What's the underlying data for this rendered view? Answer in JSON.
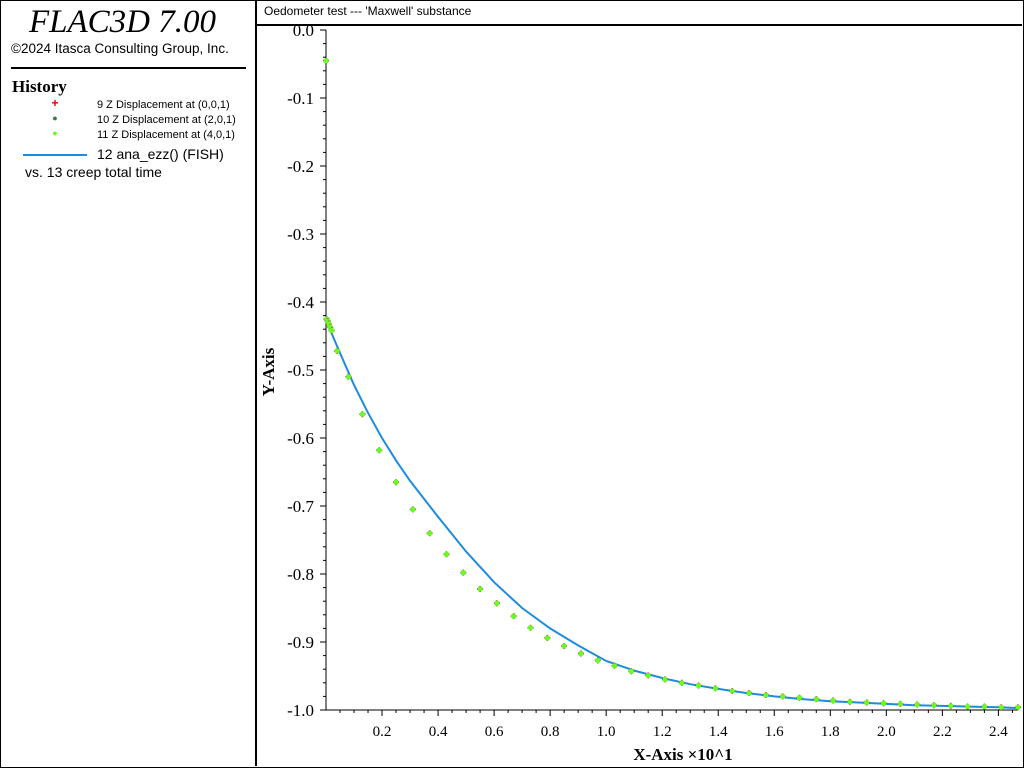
{
  "header": {
    "app_title": "FLAC3D 7.00",
    "copyright": "©2024 Itasca Consulting Group, Inc.",
    "history_title": "History"
  },
  "legend": {
    "items": [
      {
        "symbol": "+",
        "label": "9 Z Displacement at (0,0,1)",
        "color": "#e00000"
      },
      {
        "symbol": "●",
        "label": "10 Z Displacement at (2,0,1)",
        "color": "#2e7d4e"
      },
      {
        "symbol": "●",
        "label": "11 Z Displacement at (4,0,1)",
        "color": "#66ff22"
      }
    ],
    "line_item": {
      "label": "12 ana_ezz() (FISH)",
      "color": "#1e8cdc"
    },
    "vs_text": "vs. 13 creep total time"
  },
  "plot": {
    "title": "Oedometer test --- 'Maxwell' substance"
  },
  "chart_data": {
    "type": "line",
    "title": "Oedometer test --- 'Maxwell' substance",
    "xlabel": "X-Axis ×10^1",
    "ylabel": "Y-Axis",
    "xlim": [
      0,
      2.47
    ],
    "ylim": [
      -1.0,
      0.0
    ],
    "x_ticks": [
      "0.2",
      "0.4",
      "0.6",
      "0.8",
      "1.0",
      "1.2",
      "1.4",
      "1.6",
      "1.8",
      "2.0",
      "2.2",
      "2.4"
    ],
    "y_ticks": [
      "0.0",
      "-0.1",
      "-0.2",
      "-0.3",
      "-0.4",
      "-0.5",
      "-0.6",
      "-0.7",
      "-0.8",
      "-0.9",
      "-1.0"
    ],
    "line_series": {
      "name": "12 ana_ezz() (FISH)",
      "color": "#1e8cdc",
      "formula_note": "y = -1 + 0.575 * exp(-x / 0.55)",
      "x": [
        0.0,
        0.02,
        0.05,
        0.1,
        0.15,
        0.2,
        0.25,
        0.3,
        0.4,
        0.5,
        0.6,
        0.7,
        0.8,
        0.9,
        1.0,
        1.1,
        1.2,
        1.3,
        1.4,
        1.5,
        1.6,
        1.7,
        1.8,
        1.9,
        2.0,
        2.1,
        2.2,
        2.3,
        2.4,
        2.47
      ],
      "y": [
        -0.425,
        -0.446,
        -0.475,
        -0.522,
        -0.563,
        -0.6,
        -0.633,
        -0.663,
        -0.716,
        -0.767,
        -0.812,
        -0.85,
        -0.88,
        -0.905,
        -0.928,
        -0.942,
        -0.953,
        -0.962,
        -0.969,
        -0.975,
        -0.98,
        -0.984,
        -0.987,
        -0.989,
        -0.991,
        -0.993,
        -0.994,
        -0.995,
        -0.996,
        -0.997
      ]
    },
    "point_series": [
      {
        "name": "9 Z Displacement at (0,0,1)",
        "color": "#e00000"
      },
      {
        "name": "10 Z Displacement at (2,0,1)",
        "color": "#2e7d4e"
      },
      {
        "name": "11 Z Displacement at (4,0,1)",
        "color": "#66ff22"
      }
    ],
    "points": {
      "x": [
        0.0,
        0.002,
        0.006,
        0.01,
        0.015,
        0.02,
        0.04,
        0.08,
        0.13,
        0.19,
        0.25,
        0.31,
        0.37,
        0.43,
        0.49,
        0.55,
        0.61,
        0.67,
        0.73,
        0.79,
        0.85,
        0.91,
        0.97,
        1.03,
        1.09,
        1.15,
        1.21,
        1.27,
        1.33,
        1.39,
        1.45,
        1.51,
        1.57,
        1.63,
        1.69,
        1.75,
        1.81,
        1.87,
        1.93,
        1.99,
        2.05,
        2.11,
        2.17,
        2.23,
        2.29,
        2.35,
        2.41,
        2.47
      ],
      "y": [
        -0.045,
        -0.425,
        -0.428,
        -0.432,
        -0.437,
        -0.442,
        -0.472,
        -0.51,
        -0.565,
        -0.618,
        -0.665,
        -0.705,
        -0.74,
        -0.771,
        -0.798,
        -0.822,
        -0.843,
        -0.862,
        -0.879,
        -0.894,
        -0.906,
        -0.917,
        -0.927,
        -0.935,
        -0.943,
        -0.949,
        -0.955,
        -0.96,
        -0.964,
        -0.968,
        -0.972,
        -0.975,
        -0.978,
        -0.98,
        -0.982,
        -0.984,
        -0.986,
        -0.988,
        -0.989,
        -0.99,
        -0.991,
        -0.992,
        -0.993,
        -0.994,
        -0.995,
        -0.995,
        -0.996,
        -0.996
      ]
    }
  }
}
